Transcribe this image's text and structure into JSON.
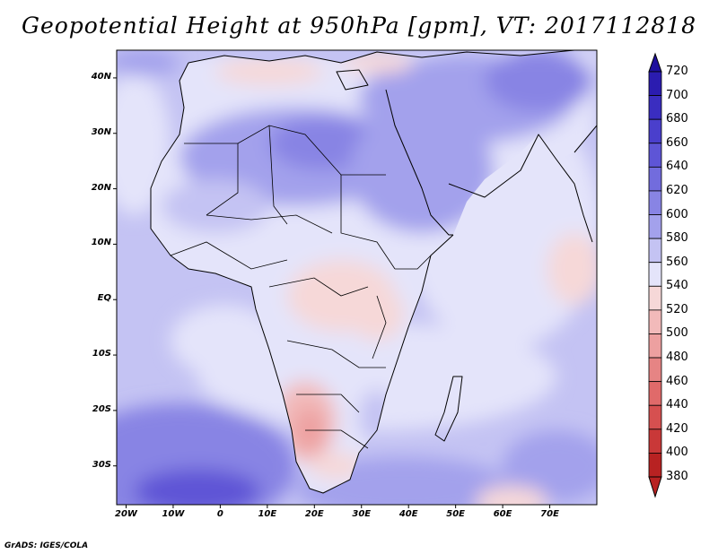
{
  "title": "Geopotential Height at 950hPa [gpm], VT: 2017112818",
  "credit": "GrADS: IGES/COLA",
  "map": {
    "variable": "Geopotential Height at 950hPa",
    "units": "gpm",
    "valid_time": "2017112818",
    "region": "Africa and Middle East",
    "lon_range": [
      -22,
      80
    ],
    "lat_range": [
      -37,
      45
    ],
    "lat_ticks": [
      {
        "value": 40,
        "label": "40N"
      },
      {
        "value": 30,
        "label": "30N"
      },
      {
        "value": 20,
        "label": "20N"
      },
      {
        "value": 10,
        "label": "10N"
      },
      {
        "value": 0,
        "label": "EQ"
      },
      {
        "value": -10,
        "label": "10S"
      },
      {
        "value": -20,
        "label": "20S"
      },
      {
        "value": -30,
        "label": "30S"
      }
    ],
    "lon_ticks": [
      {
        "value": -20,
        "label": "20W"
      },
      {
        "value": -10,
        "label": "10W"
      },
      {
        "value": 0,
        "label": "0"
      },
      {
        "value": 10,
        "label": "10E"
      },
      {
        "value": 20,
        "label": "20E"
      },
      {
        "value": 30,
        "label": "30E"
      },
      {
        "value": 40,
        "label": "40E"
      },
      {
        "value": 50,
        "label": "50E"
      },
      {
        "value": 60,
        "label": "60E"
      },
      {
        "value": 70,
        "label": "70E"
      }
    ]
  },
  "colorbar": {
    "levels": [
      {
        "label": "720",
        "color": "#1e0f9e"
      },
      {
        "label": "700",
        "color": "#2b1cb0"
      },
      {
        "label": "680",
        "color": "#3a2dc0"
      },
      {
        "label": "660",
        "color": "#4a3fcc"
      },
      {
        "label": "640",
        "color": "#5e55d6"
      },
      {
        "label": "620",
        "color": "#726cdd"
      },
      {
        "label": "600",
        "color": "#8884e4"
      },
      {
        "label": "580",
        "color": "#a3a1ec"
      },
      {
        "label": "560",
        "color": "#c4c3f3"
      },
      {
        "label": "540",
        "color": "#e4e4fa"
      },
      {
        "label": "520",
        "color": "#f6d8d8"
      },
      {
        "label": "500",
        "color": "#f2baba"
      },
      {
        "label": "480",
        "color": "#eda0a0"
      },
      {
        "label": "460",
        "color": "#e68484"
      },
      {
        "label": "440",
        "color": "#e06a6a"
      },
      {
        "label": "420",
        "color": "#d65050"
      },
      {
        "label": "400",
        "color": "#c93838"
      },
      {
        "label": "380",
        "color": "#b82222"
      }
    ]
  }
}
